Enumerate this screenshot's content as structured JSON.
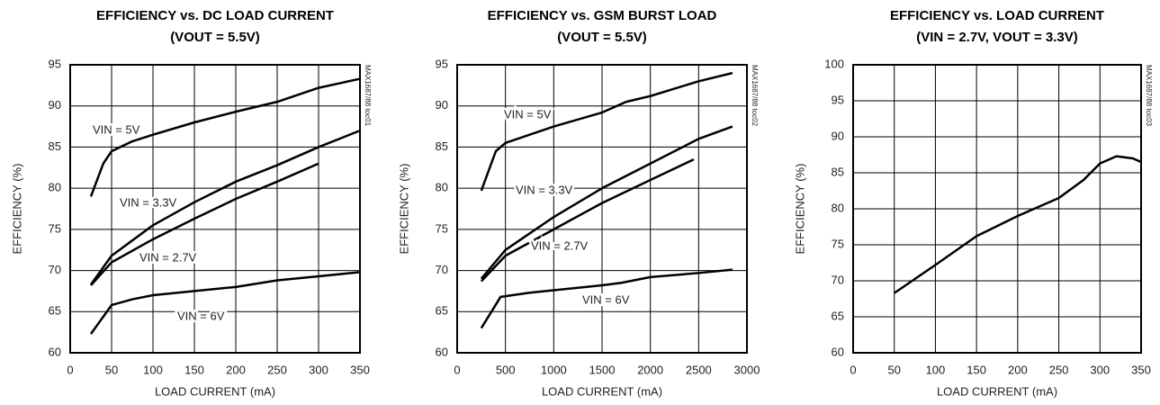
{
  "chart_data": [
    {
      "type": "line",
      "title": "EFFICIENCY vs. DC LOAD CURRENT",
      "subtitle": "(VOUT = 5.5V)",
      "code": "MAX1687/88 toc01",
      "xlabel": "LOAD CURRENT (mA)",
      "ylabel": "EFFICIENCY (%)",
      "xlim": [
        0,
        350
      ],
      "xticks": [
        0,
        50,
        100,
        150,
        200,
        250,
        300,
        350
      ],
      "ylim": [
        60,
        95
      ],
      "yticks": [
        60,
        65,
        70,
        75,
        80,
        85,
        90,
        95
      ],
      "grid": true,
      "series": [
        {
          "name": "VIN = 5V",
          "color": "#000000",
          "x": [
            25,
            40,
            50,
            75,
            100,
            150,
            200,
            250,
            300,
            350
          ],
          "values": [
            79,
            83,
            84.5,
            85.7,
            86.5,
            88,
            89.3,
            90.5,
            92.2,
            93.3
          ]
        },
        {
          "name": "VIN = 3.3V",
          "color": "#000000",
          "x": [
            25,
            50,
            100,
            150,
            200,
            250,
            300,
            350
          ],
          "values": [
            68.3,
            71.8,
            75.5,
            78.3,
            80.8,
            82.8,
            85,
            87
          ]
        },
        {
          "name": "VIN = 2.7V",
          "color": "#000000",
          "x": [
            25,
            50,
            100,
            150,
            200,
            250,
            300
          ],
          "values": [
            68.2,
            71,
            73.8,
            76.3,
            78.7,
            80.8,
            83
          ]
        },
        {
          "name": "VIN = 6V",
          "color": "#000000",
          "x": [
            25,
            50,
            75,
            100,
            150,
            200,
            250,
            300,
            350
          ],
          "values": [
            62.3,
            65.8,
            66.5,
            67,
            67.5,
            68,
            68.8,
            69.3,
            69.8
          ]
        }
      ]
    },
    {
      "type": "line",
      "title": "EFFICIENCY vs. GSM BURST LOAD",
      "subtitle": "(VOUT = 5.5V)",
      "code": "MAX1687/88 toc02",
      "xlabel": "LOAD CURRENT (mA)",
      "ylabel": "EFFICIENCY (%)",
      "xlim": [
        0,
        3000
      ],
      "xticks": [
        0,
        500,
        1000,
        1500,
        2000,
        2500,
        3000
      ],
      "ylim": [
        60,
        95
      ],
      "yticks": [
        60,
        65,
        70,
        75,
        80,
        85,
        90,
        95
      ],
      "grid": true,
      "series": [
        {
          "name": "VIN = 5V",
          "color": "#000000",
          "x": [
            250,
            400,
            500,
            1000,
            1500,
            1750,
            2000,
            2500,
            2850
          ],
          "values": [
            79.7,
            84.5,
            85.5,
            87.5,
            89.2,
            90.5,
            91.2,
            93,
            94
          ]
        },
        {
          "name": "VIN = 3.3V",
          "color": "#000000",
          "x": [
            250,
            500,
            1000,
            1500,
            2000,
            2500,
            2850
          ],
          "values": [
            69,
            72.5,
            76.5,
            80,
            83,
            86,
            87.5
          ]
        },
        {
          "name": "VIN = 2.7V",
          "color": "#000000",
          "x": [
            250,
            500,
            1000,
            1500,
            2000,
            2450
          ],
          "values": [
            68.7,
            71.8,
            75,
            78.2,
            81,
            83.5
          ]
        },
        {
          "name": "VIN = 6V",
          "color": "#000000",
          "x": [
            250,
            450,
            750,
            1000,
            1500,
            1700,
            2000,
            2500,
            2850
          ],
          "values": [
            63,
            66.8,
            67.3,
            67.6,
            68.2,
            68.5,
            69.2,
            69.7,
            70.1
          ]
        }
      ]
    },
    {
      "type": "line",
      "title": "EFFICIENCY vs. LOAD CURRENT",
      "subtitle": "(VIN = 2.7V, VOUT = 3.3V)",
      "code": "MAX1687/88 toc03",
      "xlabel": "LOAD CURRENT (mA)",
      "ylabel": "EFFICIENCY (%)",
      "xlim": [
        0,
        350
      ],
      "xticks": [
        0,
        50,
        100,
        150,
        200,
        250,
        300,
        350
      ],
      "ylim": [
        60,
        100
      ],
      "yticks": [
        60,
        65,
        70,
        75,
        80,
        85,
        90,
        95,
        100
      ],
      "grid": true,
      "series": [
        {
          "color": "#000000",
          "x": [
            50,
            100,
            150,
            200,
            250,
            280,
            300,
            320,
            340,
            350
          ],
          "values": [
            68.3,
            72.2,
            76.2,
            79,
            81.5,
            84,
            86.3,
            87.3,
            87,
            86.5
          ]
        }
      ]
    }
  ]
}
